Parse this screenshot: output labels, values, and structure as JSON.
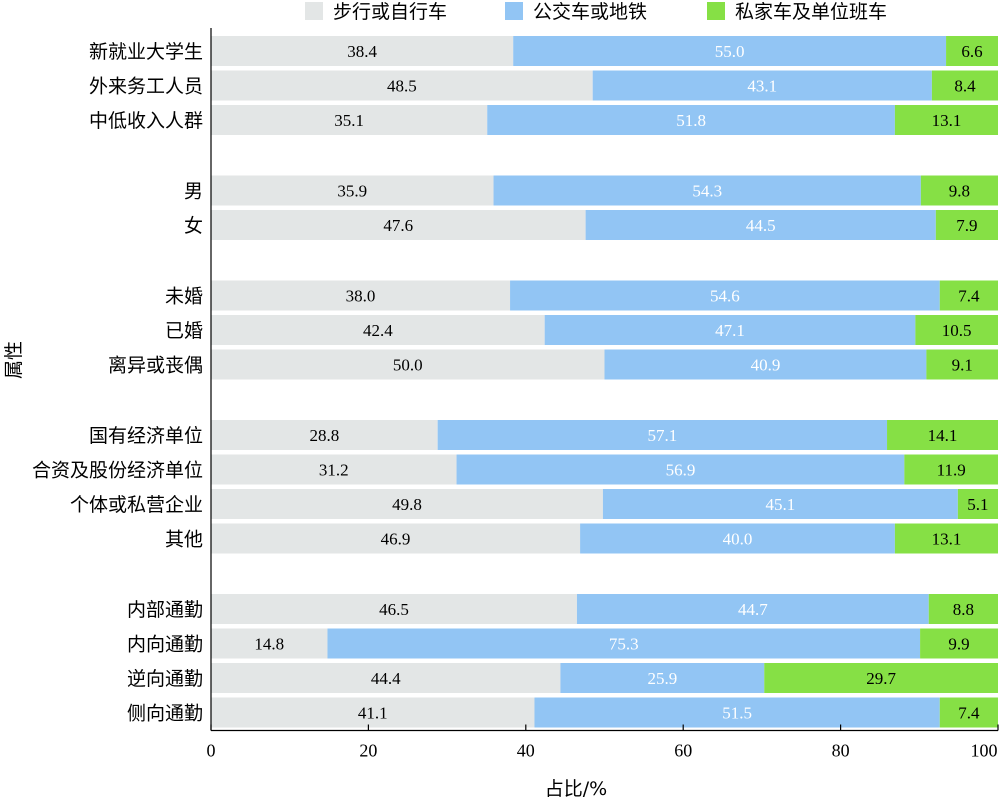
{
  "chart_data": {
    "type": "bar",
    "orientation": "horizontal",
    "stacked": true,
    "title": "",
    "xlabel": "占比/%",
    "ylabel": "属性",
    "xlim": [
      0,
      100
    ],
    "xticks": [
      0,
      20,
      40,
      60,
      80,
      100
    ],
    "legend_position": "top",
    "groups": [
      [
        "新就业大学生",
        "外来务工人员",
        "中低收入人群"
      ],
      [
        "男",
        "女"
      ],
      [
        "未婚",
        "已婚",
        "离异或丧偶"
      ],
      [
        "国有经济单位",
        "合资及股份经济单位",
        "个体或私营企业",
        "其他"
      ],
      [
        "内部通勤",
        "内向通勤",
        "逆向通勤",
        "侧向通勤"
      ]
    ],
    "categories": [
      "新就业大学生",
      "外来务工人员",
      "中低收入人群",
      "男",
      "女",
      "未婚",
      "已婚",
      "离异或丧偶",
      "国有经济单位",
      "合资及股份经济单位",
      "个体或私营企业",
      "其他",
      "内部通勤",
      "内向通勤",
      "逆向通勤",
      "侧向通勤"
    ],
    "series": [
      {
        "name": "步行或自行车",
        "color": "#e3e6e6",
        "label_color": "#000000",
        "values": [
          38.4,
          48.5,
          35.1,
          35.9,
          47.6,
          38.0,
          42.4,
          50.0,
          28.8,
          31.2,
          49.8,
          46.9,
          46.5,
          14.8,
          44.4,
          41.1
        ]
      },
      {
        "name": "公交车或地铁",
        "color": "#92c5f4",
        "label_color": "#ffffff",
        "values": [
          55.0,
          43.1,
          51.8,
          54.3,
          44.5,
          54.6,
          47.1,
          40.9,
          57.1,
          56.9,
          45.1,
          40.0,
          44.7,
          75.3,
          25.9,
          51.5
        ]
      },
      {
        "name": "私家车及单位班车",
        "color": "#86e045",
        "label_color": "#000000",
        "values": [
          6.6,
          8.4,
          13.1,
          9.8,
          7.9,
          7.4,
          10.5,
          9.1,
          14.1,
          11.9,
          5.1,
          13.1,
          8.8,
          9.9,
          29.7,
          7.4
        ]
      }
    ]
  }
}
